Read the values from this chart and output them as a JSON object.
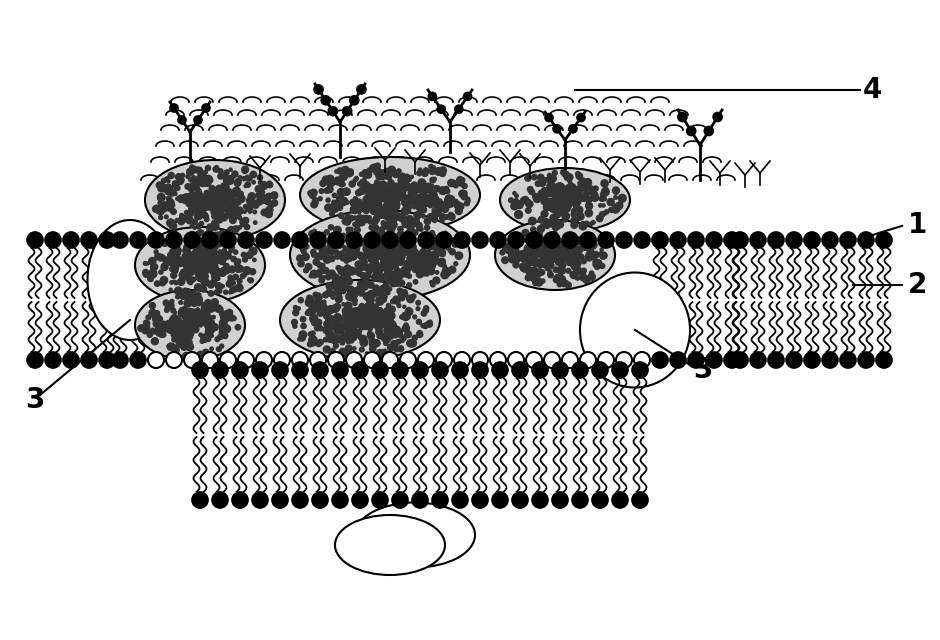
{
  "background_color": "#ffffff",
  "line_color": "#000000",
  "head_color": "#000000",
  "protein_dot_color": "#444444",
  "protein_fill": "#bbbbbb",
  "label_fontsize": 18,
  "labels": [
    "1",
    "2",
    "3",
    "4"
  ]
}
